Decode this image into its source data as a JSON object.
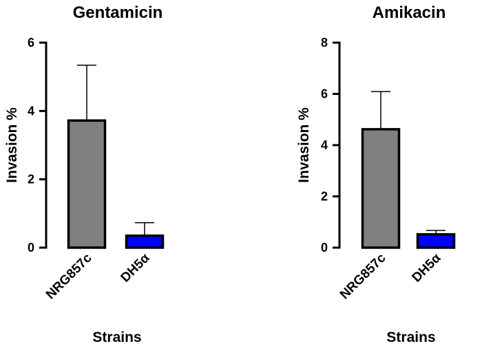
{
  "chart_data": [
    {
      "type": "bar",
      "title": "Gentamicin",
      "xlabel": "Strains",
      "ylabel": "Invasion %",
      "ylim": [
        0,
        6
      ],
      "yticks": [
        "0",
        "2",
        "4",
        "6"
      ],
      "categories": [
        "NRG857c",
        "DH5α"
      ],
      "values": [
        3.72,
        0.35
      ],
      "error_upper": [
        1.62,
        0.38
      ],
      "colors": [
        "#808080",
        "#0000ff"
      ]
    },
    {
      "type": "bar",
      "title": "Amikacin",
      "xlabel": "Strains",
      "ylabel": "Invasion %",
      "ylim": [
        0,
        8
      ],
      "yticks": [
        "0",
        "2",
        "4",
        "6",
        "8"
      ],
      "categories": [
        "NRG857c",
        "DH5α"
      ],
      "values": [
        4.62,
        0.52
      ],
      "error_upper": [
        1.47,
        0.15
      ],
      "colors": [
        "#808080",
        "#0000ff"
      ]
    }
  ]
}
